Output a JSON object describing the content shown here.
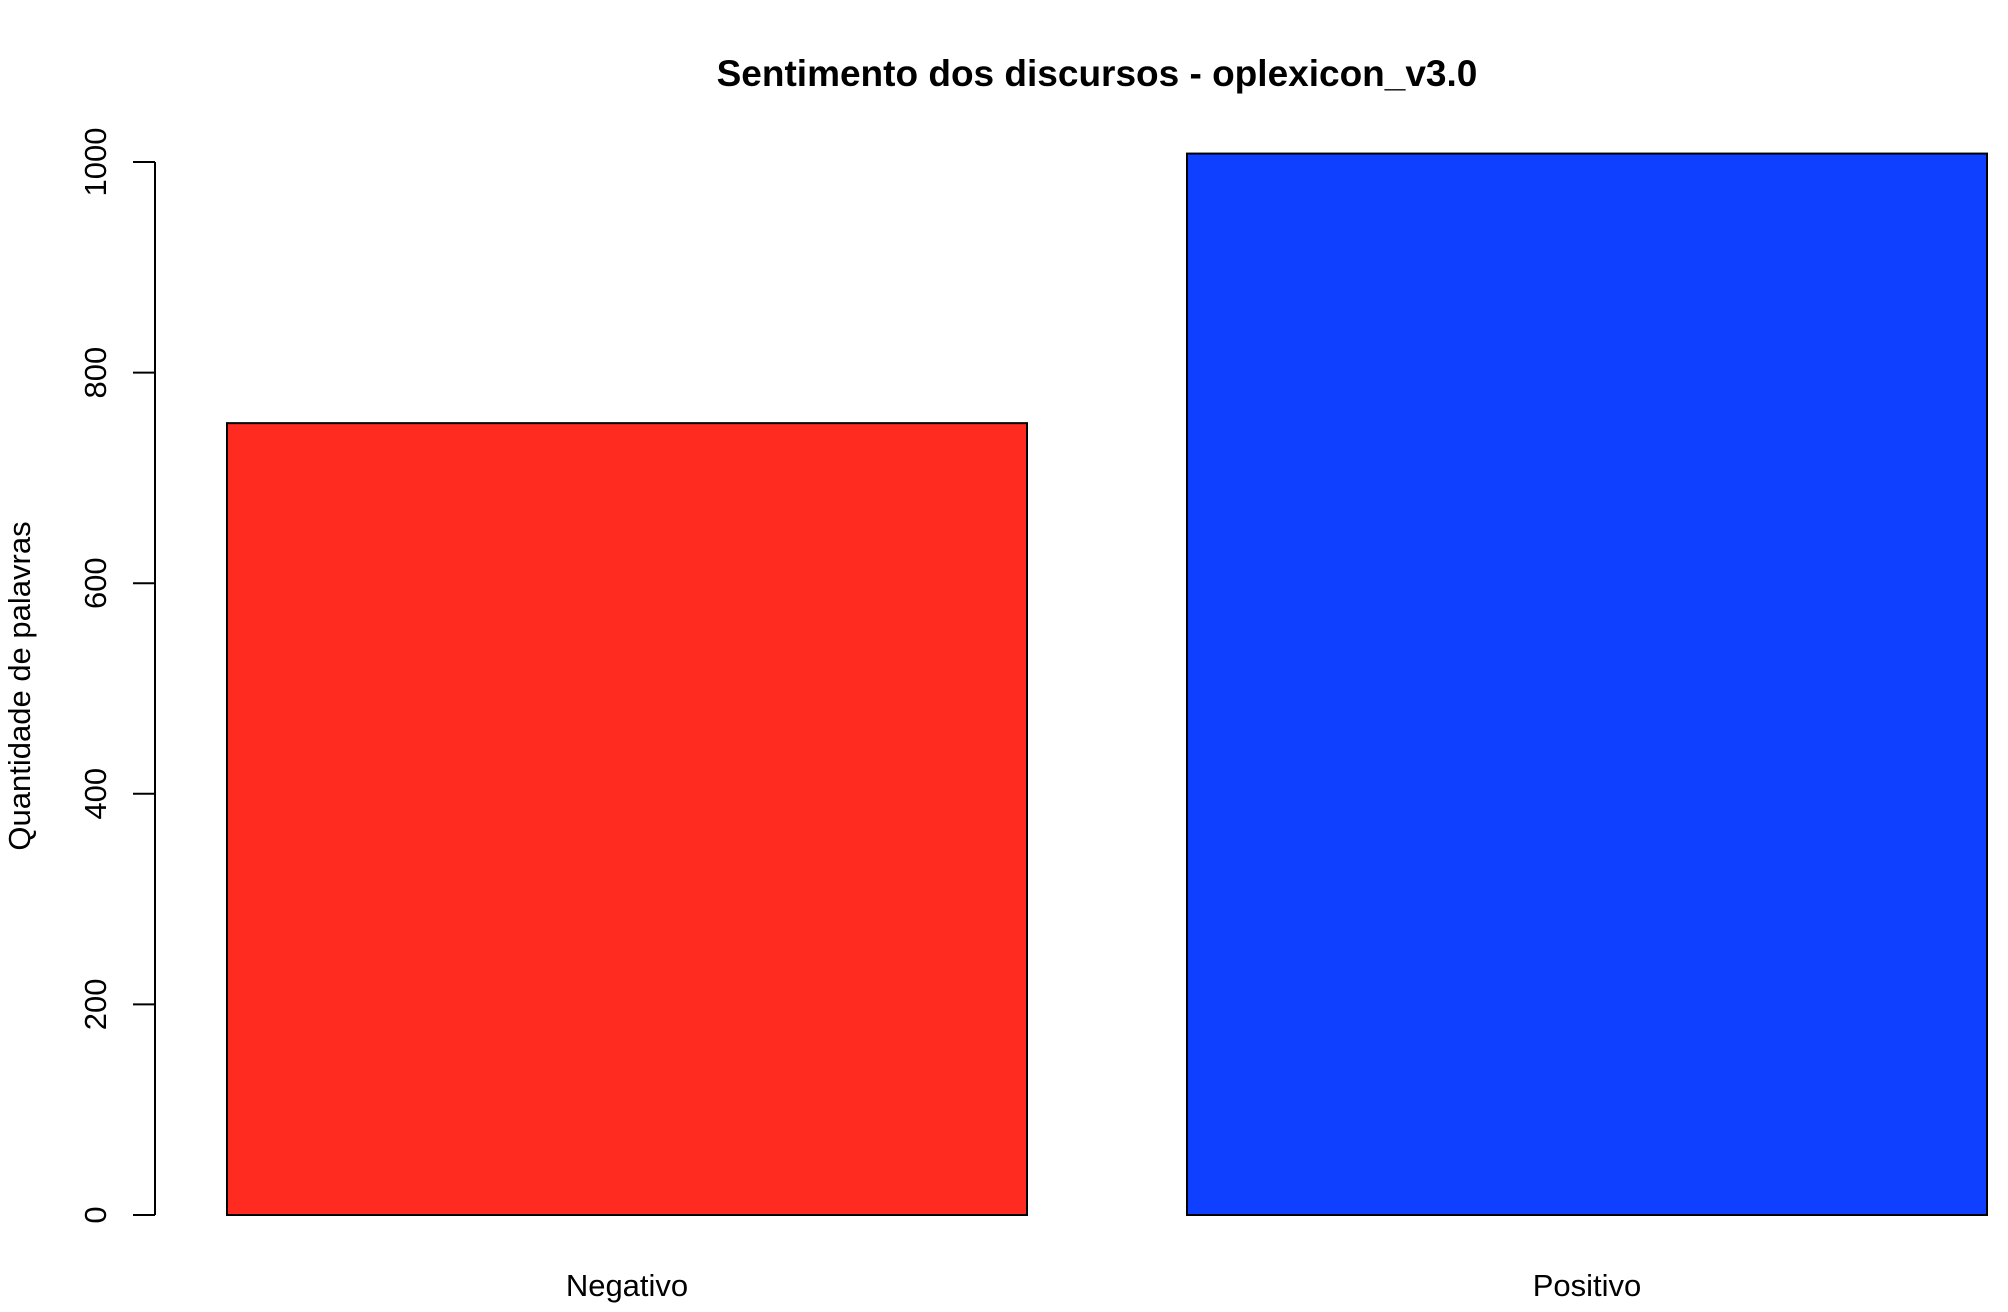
{
  "chart_data": {
    "type": "bar",
    "title": "Sentimento dos discursos - oplexicon_v3.0",
    "xlabel": "",
    "ylabel": "Quantidade de palavras",
    "categories": [
      "Negativo",
      "Positivo"
    ],
    "values": [
      752,
      1008
    ],
    "colors": [
      "#FF2A20",
      "#1040FF"
    ],
    "ylim": [
      0,
      1000
    ],
    "yticks": [
      0,
      200,
      400,
      600,
      800,
      1000
    ],
    "grid": false,
    "legend": "none"
  }
}
